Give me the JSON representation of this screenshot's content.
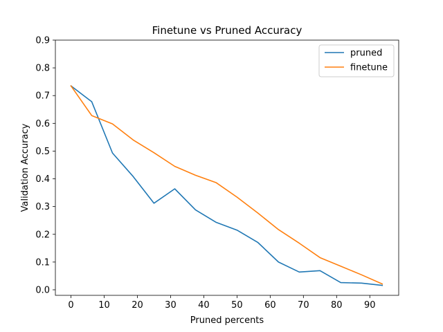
{
  "chart_data": {
    "type": "line",
    "title": "Finetune vs Pruned Accuracy",
    "xlabel": "Pruned percents",
    "ylabel": "Validation Accuracy",
    "xlim": [
      -4.7,
      98.7
    ],
    "ylim": [
      -0.02,
      0.9
    ],
    "xticks": [
      0,
      10,
      20,
      30,
      40,
      50,
      60,
      70,
      80,
      90
    ],
    "yticks": [
      0.0,
      0.1,
      0.2,
      0.3,
      0.4,
      0.5,
      0.6,
      0.7,
      0.8,
      0.9
    ],
    "ytick_labels": [
      "0.0",
      "0.1",
      "0.2",
      "0.3",
      "0.4",
      "0.5",
      "0.6",
      "0.7",
      "0.8",
      "0.9"
    ],
    "legend_position": "top-right",
    "grid": false,
    "x": [
      0,
      6.25,
      12.5,
      18.75,
      25,
      31.25,
      37.5,
      43.75,
      50,
      56.25,
      62.5,
      68.75,
      75,
      81.25,
      87.5,
      93.75
    ],
    "series": [
      {
        "name": "pruned",
        "color": "#1f77b4",
        "values": [
          0.735,
          0.678,
          0.493,
          0.408,
          0.312,
          0.364,
          0.288,
          0.243,
          0.215,
          0.171,
          0.1,
          0.064,
          0.069,
          0.026,
          0.024,
          0.016
        ]
      },
      {
        "name": "finetune",
        "color": "#ff7f0e",
        "values": [
          0.735,
          0.628,
          0.598,
          0.54,
          0.494,
          0.445,
          0.413,
          0.386,
          0.334,
          0.277,
          0.217,
          0.168,
          0.116,
          0.085,
          0.054,
          0.021
        ]
      }
    ]
  }
}
